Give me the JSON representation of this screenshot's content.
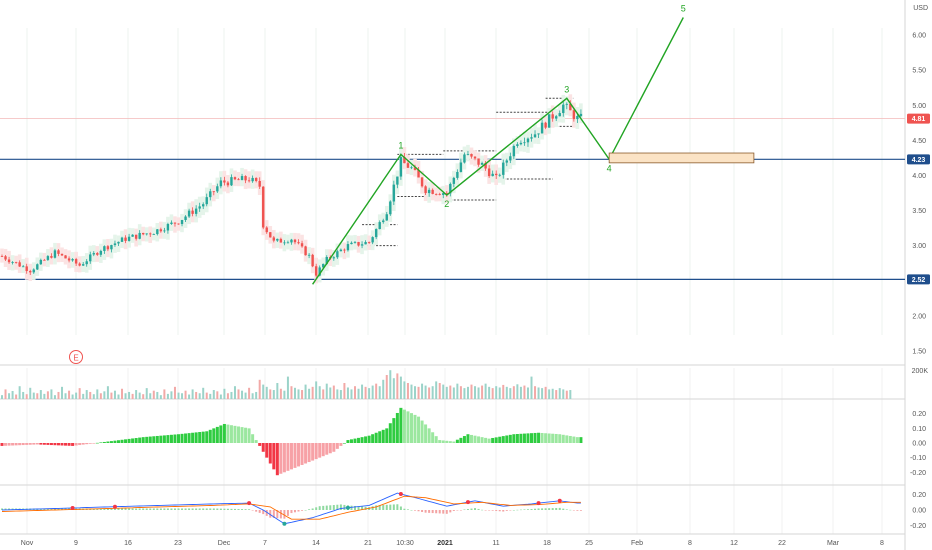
{
  "chart_data": {
    "type": "candlestick",
    "currency": "USD",
    "price_axis": {
      "ticks": [
        "1.50",
        "2.00",
        "2.50",
        "3.00",
        "3.50",
        "4.00",
        "4.50",
        "5.00",
        "5.50",
        "6.00"
      ],
      "range": [
        1.3,
        6.5
      ]
    },
    "time_axis": {
      "ticks": [
        "Nov",
        "9",
        "16",
        "23",
        "Dec",
        "7",
        "14",
        "21",
        "10:30",
        "2021",
        "11",
        "18",
        "25",
        "Feb",
        "8",
        "12",
        "22",
        "Mar",
        "8"
      ],
      "bold_ticks": [
        "2021"
      ]
    },
    "price_badges": [
      {
        "label": "4.81",
        "value": 4.81,
        "color": "#ef5350"
      },
      {
        "label": "4.23",
        "value": 4.23,
        "color": "#1f4e8c"
      },
      {
        "label": "2.52",
        "value": 2.52,
        "color": "#1f4e8c"
      }
    ],
    "horizontal_levels": [
      {
        "value": 4.23,
        "color": "#1f4e8c"
      },
      {
        "value": 2.52,
        "color": "#1f4e8c"
      }
    ],
    "price_path": [
      {
        "t": 0,
        "p": 2.85
      },
      {
        "t": 8,
        "p": 2.65
      },
      {
        "t": 15,
        "p": 2.9
      },
      {
        "t": 22,
        "p": 2.72
      },
      {
        "t": 28,
        "p": 2.95
      },
      {
        "t": 35,
        "p": 3.1
      },
      {
        "t": 43,
        "p": 3.2
      },
      {
        "t": 50,
        "p": 3.35
      },
      {
        "t": 57,
        "p": 3.6
      },
      {
        "t": 62,
        "p": 3.9
      },
      {
        "t": 70,
        "p": 3.95
      },
      {
        "t": 73,
        "p": 3.85
      },
      {
        "t": 74,
        "p": 3.3
      },
      {
        "t": 77,
        "p": 3.05
      },
      {
        "t": 82,
        "p": 3.1
      },
      {
        "t": 87,
        "p": 2.85
      },
      {
        "t": 89,
        "p": 2.6
      },
      {
        "t": 92,
        "p": 2.8
      },
      {
        "t": 98,
        "p": 3.0
      },
      {
        "t": 104,
        "p": 3.05
      },
      {
        "t": 109,
        "p": 3.5
      },
      {
        "t": 113,
        "p": 4.2
      },
      {
        "t": 116,
        "p": 4.1
      },
      {
        "t": 120,
        "p": 3.8
      },
      {
        "t": 126,
        "p": 3.75
      },
      {
        "t": 131,
        "p": 4.3
      },
      {
        "t": 136,
        "p": 4.15
      },
      {
        "t": 140,
        "p": 3.95
      },
      {
        "t": 146,
        "p": 4.5
      },
      {
        "t": 151,
        "p": 4.6
      },
      {
        "t": 155,
        "p": 4.8
      },
      {
        "t": 159,
        "p": 5.0
      },
      {
        "t": 163,
        "p": 4.81
      }
    ],
    "elliott_waves": [
      {
        "label": "1",
        "t": 113,
        "p": 4.3
      },
      {
        "label": "2",
        "t": 126,
        "p": 3.72
      },
      {
        "label": "3",
        "t": 160,
        "p": 5.1
      },
      {
        "label": "4",
        "t": 172,
        "p": 4.23
      },
      {
        "label": "5",
        "t": 193,
        "p": 6.25
      }
    ],
    "wave_start": {
      "t": 88,
      "p": 2.45
    },
    "target_zone": {
      "t_start": 172,
      "t_end": 213,
      "p_low": 4.18,
      "p_high": 4.32
    },
    "volume": {
      "axis_label": "200K",
      "values": [
        12,
        30,
        18,
        25,
        14,
        40,
        22,
        15,
        35,
        20,
        18,
        28,
        16,
        24,
        30,
        12,
        22,
        38,
        18,
        26,
        14,
        20,
        34,
        16,
        28,
        22,
        15,
        30,
        18,
        24,
        40,
        20,
        26,
        14,
        32,
        18,
        22,
        16,
        28,
        20,
        15,
        34,
        18,
        26,
        22,
        12,
        30,
        16,
        24,
        38,
        20,
        18,
        26,
        14,
        30,
        22,
        18,
        35,
        20,
        16,
        28,
        24,
        14,
        32,
        18,
        22,
        40,
        30,
        26,
        20,
        35,
        18,
        22,
        60,
        45,
        38,
        30,
        28,
        50,
        32,
        26,
        70,
        40,
        35,
        30,
        28,
        45,
        32,
        38,
        55,
        40,
        30,
        48,
        36,
        42,
        30,
        28,
        50,
        36,
        30,
        40,
        32,
        45,
        38,
        34,
        42,
        48,
        40,
        60,
        75,
        90,
        65,
        80,
        70,
        55,
        50,
        45,
        40,
        38,
        48,
        42,
        36,
        40,
        55,
        50,
        45,
        38,
        42,
        36,
        48,
        40,
        34,
        38,
        45,
        40,
        36,
        42,
        48,
        38,
        34,
        40,
        36,
        44,
        38,
        34,
        40,
        46,
        38,
        42,
        36,
        70,
        40,
        36,
        34,
        38,
        30,
        32,
        28,
        34,
        30,
        26,
        28
      ]
    },
    "histogram": {
      "axis_ticks": [
        "0.20",
        "0.10",
        "0.00",
        "-0.10",
        "-0.20"
      ],
      "range": [
        -0.28,
        0.28
      ],
      "control_points": [
        {
          "t": 0,
          "v": -0.02
        },
        {
          "t": 10,
          "v": -0.01
        },
        {
          "t": 20,
          "v": -0.02
        },
        {
          "t": 30,
          "v": 0.01
        },
        {
          "t": 40,
          "v": 0.04
        },
        {
          "t": 50,
          "v": 0.06
        },
        {
          "t": 58,
          "v": 0.08
        },
        {
          "t": 63,
          "v": 0.13
        },
        {
          "t": 70,
          "v": 0.1
        },
        {
          "t": 74,
          "v": -0.06
        },
        {
          "t": 78,
          "v": -0.22
        },
        {
          "t": 82,
          "v": -0.18
        },
        {
          "t": 88,
          "v": -0.12
        },
        {
          "t": 94,
          "v": -0.06
        },
        {
          "t": 98,
          "v": 0.02
        },
        {
          "t": 104,
          "v": 0.05
        },
        {
          "t": 109,
          "v": 0.1
        },
        {
          "t": 113,
          "v": 0.24
        },
        {
          "t": 118,
          "v": 0.18
        },
        {
          "t": 124,
          "v": 0.02
        },
        {
          "t": 128,
          "v": 0.01
        },
        {
          "t": 132,
          "v": 0.06
        },
        {
          "t": 138,
          "v": 0.03
        },
        {
          "t": 145,
          "v": 0.06
        },
        {
          "t": 152,
          "v": 0.07
        },
        {
          "t": 158,
          "v": 0.06
        },
        {
          "t": 163,
          "v": 0.04
        }
      ]
    },
    "oscillator": {
      "axis_ticks": [
        "0.20",
        "0.00",
        "-0.20"
      ],
      "range": [
        -0.3,
        0.3
      ],
      "line1": [
        {
          "t": 0,
          "v": 0.0
        },
        {
          "t": 15,
          "v": 0.02
        },
        {
          "t": 30,
          "v": 0.04
        },
        {
          "t": 45,
          "v": 0.06
        },
        {
          "t": 60,
          "v": 0.08
        },
        {
          "t": 70,
          "v": 0.09
        },
        {
          "t": 74,
          "v": 0.0
        },
        {
          "t": 80,
          "v": -0.18
        },
        {
          "t": 88,
          "v": -0.1
        },
        {
          "t": 96,
          "v": 0.02
        },
        {
          "t": 104,
          "v": 0.06
        },
        {
          "t": 112,
          "v": 0.22
        },
        {
          "t": 118,
          "v": 0.15
        },
        {
          "t": 126,
          "v": 0.05
        },
        {
          "t": 134,
          "v": 0.12
        },
        {
          "t": 142,
          "v": 0.05
        },
        {
          "t": 150,
          "v": 0.08
        },
        {
          "t": 158,
          "v": 0.12
        },
        {
          "t": 163,
          "v": 0.09
        }
      ],
      "line2": [
        {
          "t": 0,
          "v": -0.02
        },
        {
          "t": 15,
          "v": 0.0
        },
        {
          "t": 30,
          "v": 0.02
        },
        {
          "t": 45,
          "v": 0.04
        },
        {
          "t": 60,
          "v": 0.06
        },
        {
          "t": 70,
          "v": 0.08
        },
        {
          "t": 76,
          "v": 0.04
        },
        {
          "t": 82,
          "v": -0.12
        },
        {
          "t": 90,
          "v": -0.12
        },
        {
          "t": 98,
          "v": -0.03
        },
        {
          "t": 106,
          "v": 0.04
        },
        {
          "t": 114,
          "v": 0.18
        },
        {
          "t": 120,
          "v": 0.16
        },
        {
          "t": 128,
          "v": 0.08
        },
        {
          "t": 136,
          "v": 0.1
        },
        {
          "t": 144,
          "v": 0.06
        },
        {
          "t": 152,
          "v": 0.07
        },
        {
          "t": 160,
          "v": 0.1
        },
        {
          "t": 163,
          "v": 0.1
        }
      ]
    },
    "event_marker": "E"
  },
  "colors": {
    "up": "#26a69a",
    "down": "#ef5350",
    "wave": "#22a524",
    "level": "#1f4e8c",
    "hist_up": "#2ecc40",
    "hist_down": "#f23645",
    "zone_fill": "#fbe3c5",
    "zone_stroke": "#8a5a2b"
  }
}
